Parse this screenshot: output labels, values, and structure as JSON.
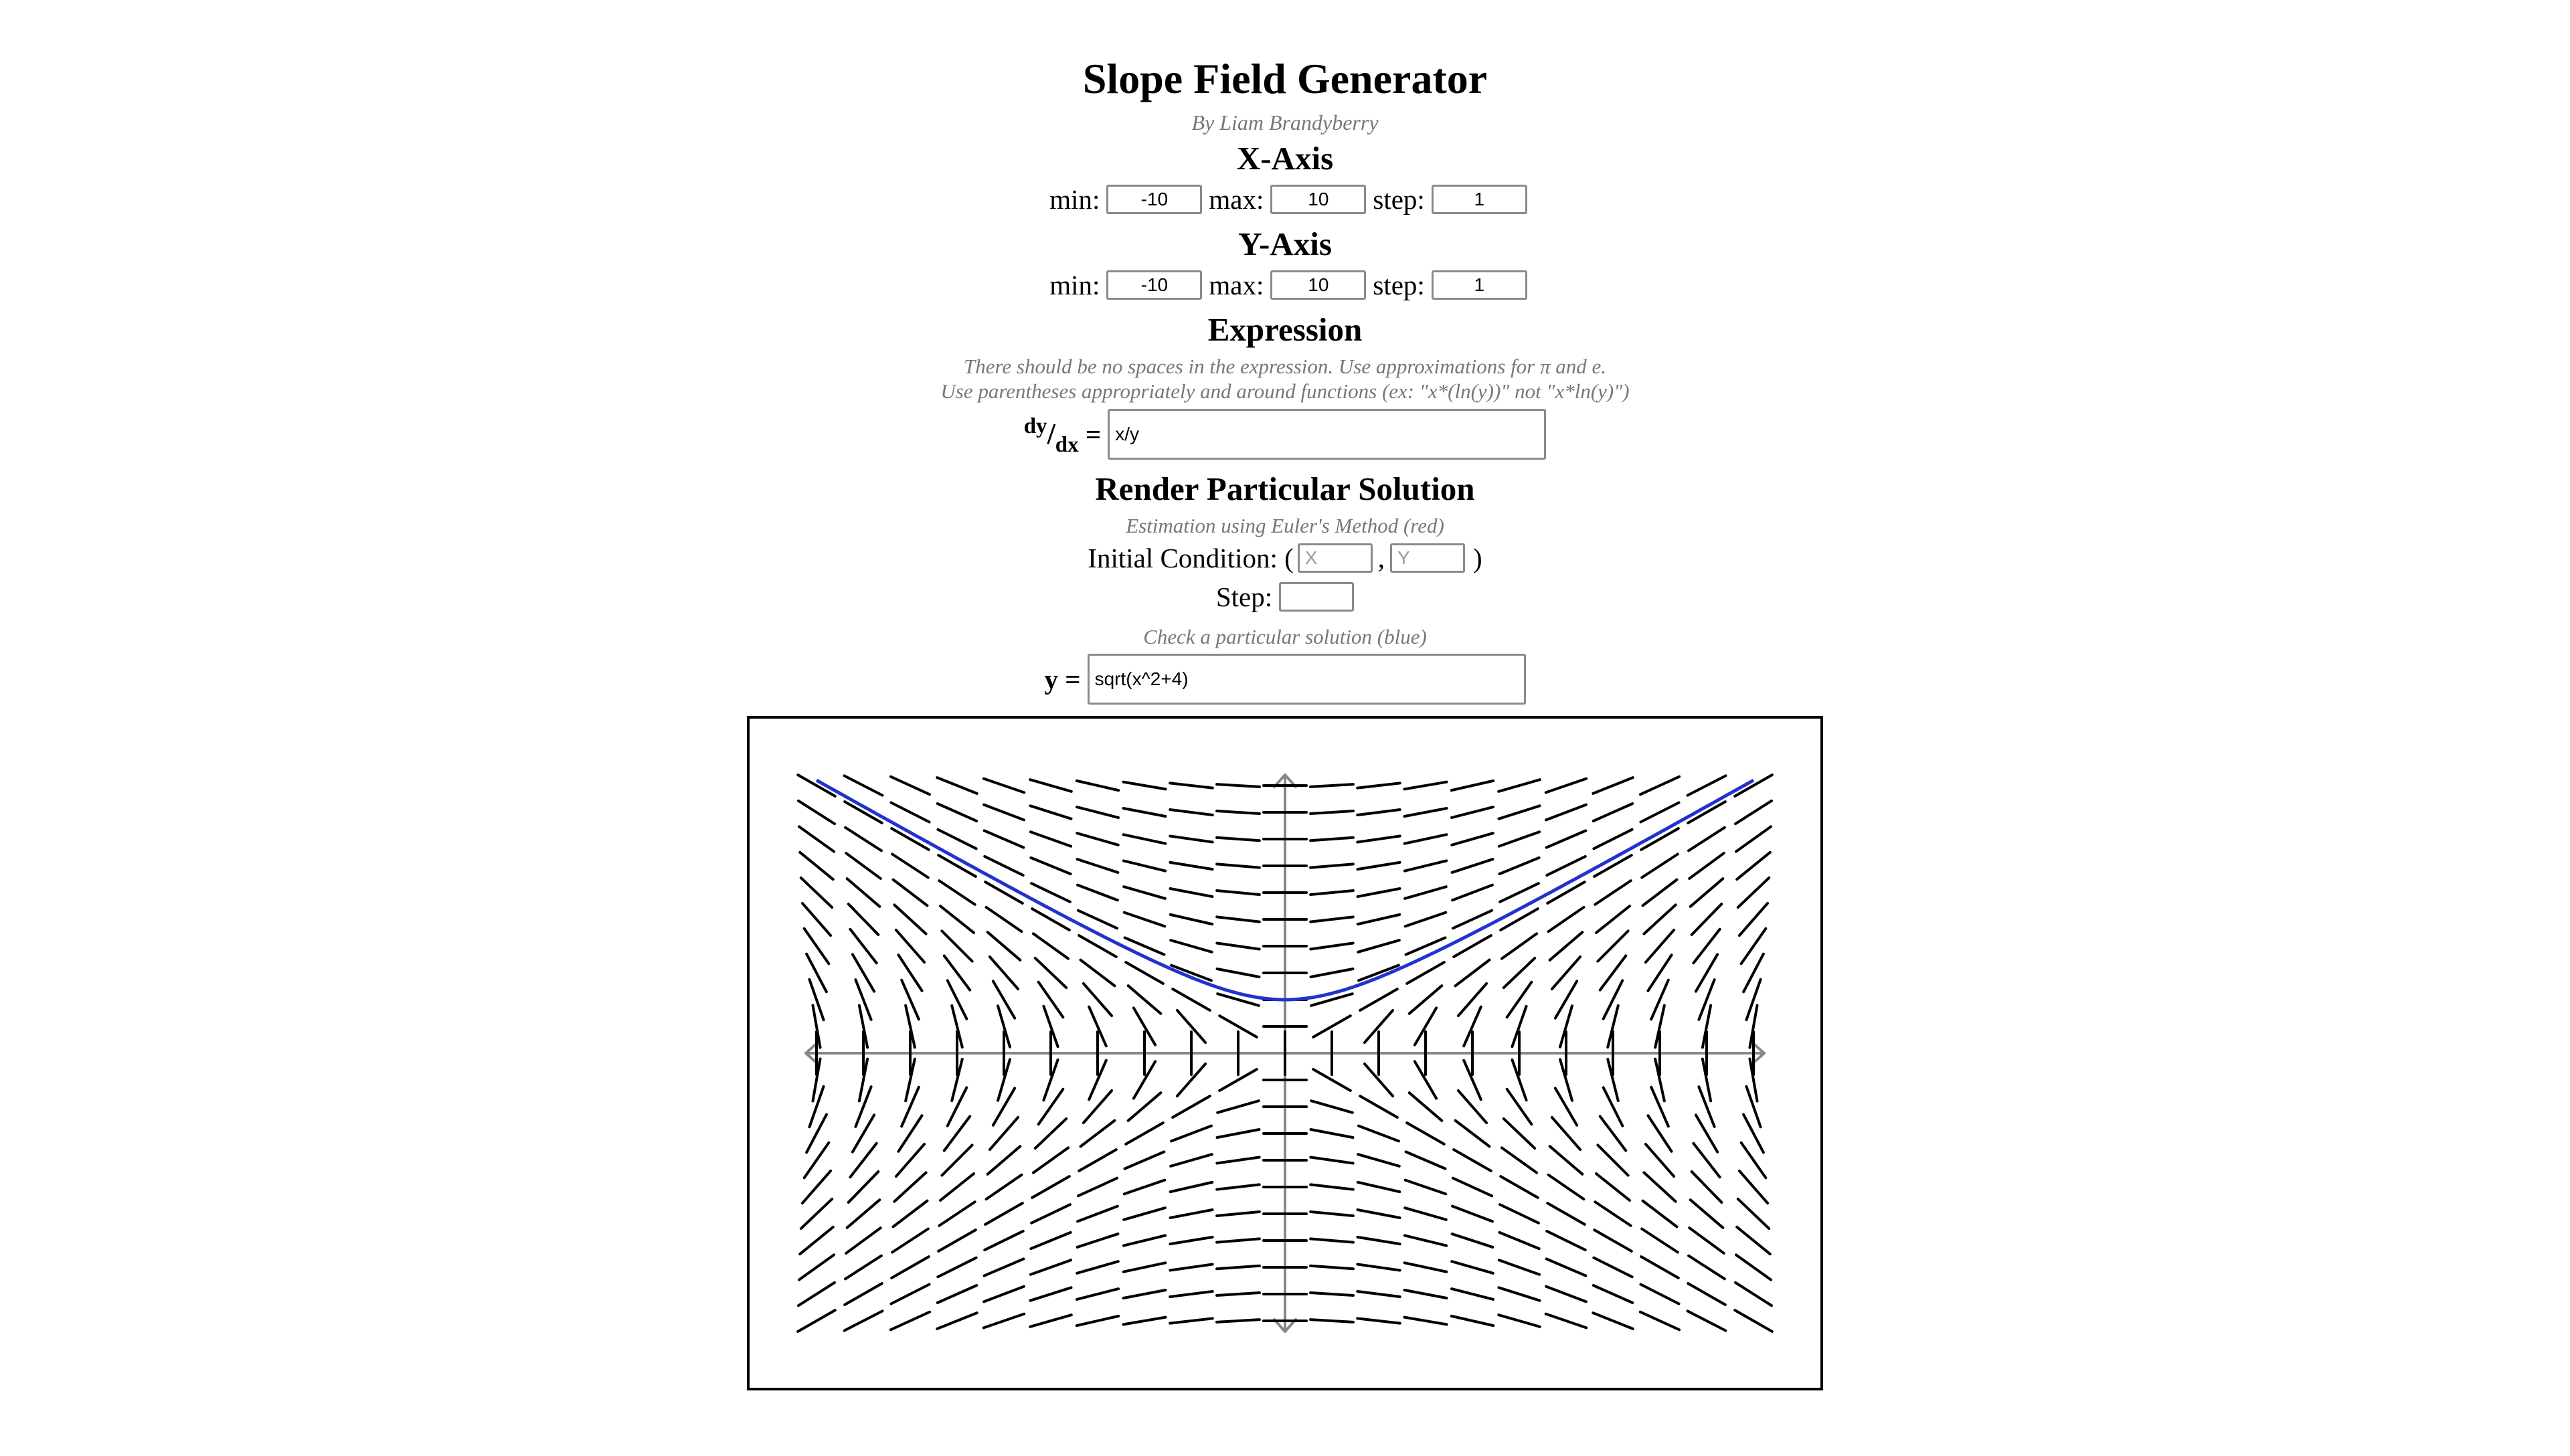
{
  "header": {
    "title": "Slope Field Generator",
    "byline": "By Liam Brandyberry"
  },
  "x_axis": {
    "heading": "X-Axis",
    "min_label": "min:",
    "min": "-10",
    "max_label": "max:",
    "max": "10",
    "step_label": "step:",
    "step": "1"
  },
  "y_axis": {
    "heading": "Y-Axis",
    "min_label": "min:",
    "min": "-10",
    "max_label": "max:",
    "max": "10",
    "step_label": "step:",
    "step": "1"
  },
  "expression": {
    "heading": "Expression",
    "note_1": "There should be no spaces in the expression. Use approximations for π and e.",
    "note_2": "Use parentheses appropriately and around functions (ex: \"x*(ln(y))\" not \"x*ln(y)\")",
    "dy": "dy",
    "dx": "dx",
    "equals": "=",
    "value": "x/y"
  },
  "particular": {
    "heading": "Render Particular Solution",
    "euler_note": "Estimation using Euler's Method (red)",
    "initial_label": "Initial Condition: (",
    "x_placeholder": "X",
    "comma": ",",
    "y_placeholder": "Y",
    "close_paren": ")",
    "step_label": "Step:",
    "check_note": "Check a particular solution (blue)",
    "y_label": "y =",
    "solution": "sqrt(x^2+4)"
  },
  "colors": {
    "slope": "#000000",
    "axis": "#888888",
    "solution": "#2233cc"
  }
}
